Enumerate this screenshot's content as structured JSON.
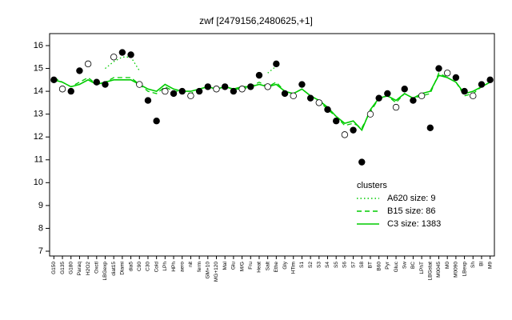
{
  "chart_data": {
    "type": "line",
    "title": "zwf [2479156,2480625,+1]",
    "categories": [
      "G150",
      "G135",
      "G180",
      "Paraq",
      "H2O2",
      "Oxctl",
      "LBGexp",
      "diat15",
      "Diami",
      "dia5",
      "C90",
      "C30",
      "Cold",
      "LPh",
      "HPh",
      "aero",
      "nit",
      "ferm",
      "GM+10",
      "MG+120",
      "Mal",
      "Glu",
      "M/G",
      "Fru",
      "Heat",
      "Salt",
      "Ethe",
      "Gly",
      "HTim",
      "S1",
      "S2",
      "S3",
      "S4",
      "S5",
      "S6",
      "S7",
      "S8",
      "BT",
      "B60",
      "Pyr",
      "Gluc",
      "Sw",
      "BC",
      "LPhT",
      "LBGstat",
      "M0045",
      "M0",
      "M0090",
      "LBexp",
      "Sh",
      "Bl",
      "M9"
    ],
    "ylim": [
      7,
      16
    ],
    "yticks": [
      7,
      8,
      9,
      10,
      11,
      12,
      13,
      14,
      15,
      16
    ],
    "legend_title": "clusters",
    "legend": "right",
    "series": [
      {
        "name": "A620 size: 9",
        "color": "#00cc00",
        "style": "dotted",
        "values": [
          null,
          null,
          null,
          null,
          null,
          null,
          15.0,
          15.3,
          15.5,
          15.5,
          14.9,
          null,
          null,
          null,
          null,
          null,
          null,
          null,
          null,
          null,
          null,
          null,
          null,
          null,
          null,
          14.8,
          15.1,
          null,
          null,
          null,
          null,
          null,
          null,
          null,
          null,
          null,
          null,
          null,
          null,
          null,
          null,
          null,
          null,
          null,
          null,
          null,
          null,
          null,
          null,
          null,
          null,
          null
        ]
      },
      {
        "name": "B15 size: 86",
        "color": "#00cc00",
        "style": "dashed",
        "values": [
          14.6,
          14.4,
          14.2,
          14.4,
          14.6,
          14.3,
          14.4,
          14.6,
          14.6,
          14.6,
          14.3,
          14.0,
          13.9,
          14.2,
          14.0,
          14.0,
          13.9,
          14.1,
          14.2,
          14.1,
          14.2,
          14.1,
          14.1,
          14.2,
          14.4,
          14.2,
          14.4,
          14.0,
          13.9,
          14.1,
          13.8,
          13.6,
          13.2,
          12.9,
          12.5,
          12.6,
          12.4,
          13.1,
          13.7,
          13.8,
          13.5,
          13.9,
          13.7,
          13.8,
          13.9,
          14.8,
          14.6,
          14.4,
          13.8,
          13.9,
          14.2,
          14.4
        ]
      },
      {
        "name": "C3 size: 1383",
        "color": "#00cc00",
        "style": "solid",
        "values": [
          14.5,
          14.4,
          14.2,
          14.3,
          14.5,
          14.3,
          14.4,
          14.5,
          14.5,
          14.5,
          14.3,
          14.1,
          14.0,
          14.3,
          14.1,
          14.0,
          14.0,
          14.1,
          14.2,
          14.1,
          14.2,
          14.1,
          14.2,
          14.2,
          14.3,
          14.2,
          14.3,
          14.0,
          13.9,
          14.1,
          13.8,
          13.6,
          13.3,
          12.9,
          12.6,
          12.7,
          12.3,
          13.2,
          13.7,
          13.8,
          13.6,
          13.9,
          13.7,
          13.9,
          14.0,
          14.7,
          14.6,
          14.4,
          13.9,
          14.0,
          14.2,
          14.4
        ]
      }
    ],
    "points": {
      "color": "#000000",
      "values": [
        14.5,
        14.1,
        14.0,
        14.9,
        15.2,
        14.4,
        14.3,
        15.5,
        15.7,
        15.6,
        14.3,
        13.6,
        12.7,
        14.0,
        13.9,
        14.0,
        13.8,
        14.0,
        14.2,
        14.1,
        14.2,
        14.0,
        14.1,
        14.2,
        14.7,
        14.2,
        15.2,
        13.9,
        13.8,
        14.3,
        13.7,
        13.5,
        13.2,
        12.7,
        12.1,
        12.3,
        10.9,
        13.0,
        13.7,
        13.9,
        13.3,
        14.1,
        13.6,
        13.8,
        12.4,
        15.0,
        14.8,
        14.6,
        14.0,
        13.8,
        14.3,
        14.5
      ]
    }
  }
}
